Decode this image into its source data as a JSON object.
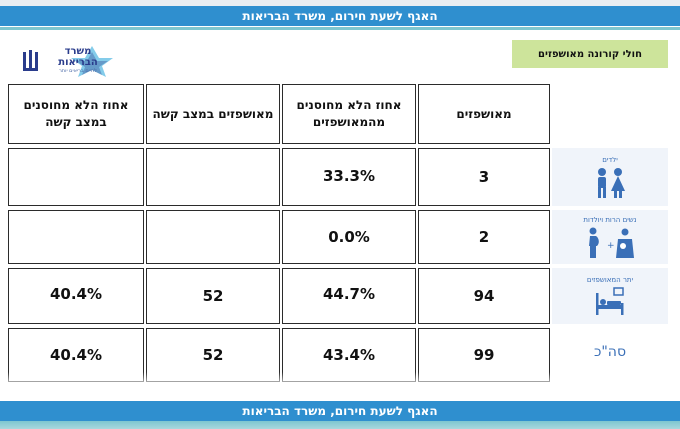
{
  "banner": {
    "text": "האגף לשעת חירום, משרד הבריאות"
  },
  "slide_title": "חולי קורונה מאושפזים",
  "logo": {
    "line1": "משרד",
    "line2": "הבריאות",
    "tagline": "לחיים בריאים יותר"
  },
  "table": {
    "headers": {
      "hospitalized": "מאושפזים",
      "pct_unvaccinated": "אחוז הלא מחוסנים מהמאושפזים",
      "severe": "מאושפזים במצב קשה",
      "pct_unvaccinated_severe": "אחוז הלא מחוסנים במצב קשה"
    },
    "rows": [
      {
        "label": "ילדים",
        "icon": "children-icon",
        "hospitalized": "3",
        "pct_unvaccinated": "33.3%",
        "severe": "",
        "pct_unvaccinated_severe": ""
      },
      {
        "label": "נשים הרות ויולדות",
        "icon": "pregnant-and-mother-icon",
        "hospitalized": "2",
        "pct_unvaccinated": "0.0%",
        "severe": "",
        "pct_unvaccinated_severe": ""
      },
      {
        "label": "יתר המאושפזים",
        "icon": "hospital-bed-icon",
        "hospitalized": "94",
        "pct_unvaccinated": "44.7%",
        "severe": "52",
        "pct_unvaccinated_severe": "40.4%"
      },
      {
        "label": "סה\"כ",
        "icon": "",
        "hospitalized": "99",
        "pct_unvaccinated": "43.4%",
        "severe": "52",
        "pct_unvaccinated_severe": "40.4%"
      }
    ]
  },
  "colors": {
    "banner": "#2f8fcf",
    "title_bg": "#cde49b",
    "icon_blue": "#3a6fb7",
    "logo_navy": "#2a3c8c"
  }
}
